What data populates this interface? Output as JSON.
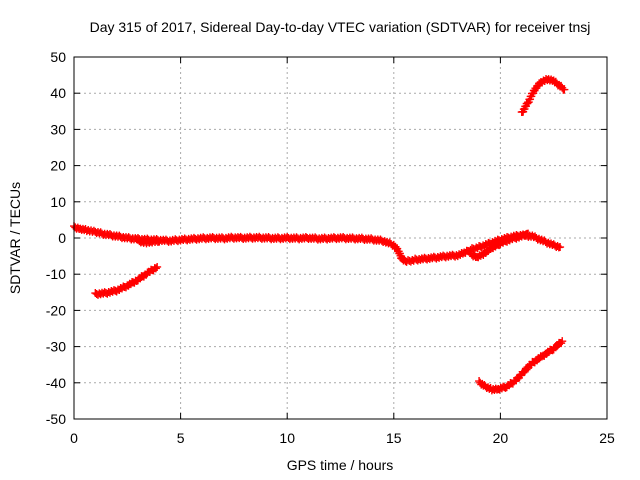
{
  "chart_data": {
    "type": "scatter",
    "title": "Day 315 of 2017, Sidereal Day-to-day VTEC variation (SDTVAR) for receiver tnsj",
    "xlabel": "GPS time / hours",
    "ylabel": "SDTVAR / TECUs",
    "xlim": [
      0,
      25
    ],
    "ylim": [
      -50,
      50
    ],
    "xticks": [
      "0",
      "5",
      "10",
      "15",
      "20",
      "25"
    ],
    "yticks": [
      "-50",
      "-40",
      "-30",
      "-20",
      "-10",
      "0",
      "10",
      "20",
      "30",
      "40",
      "50"
    ],
    "grid": true,
    "marker": "+",
    "color": "#ff0000",
    "series": [
      {
        "name": "main-track",
        "points": [
          [
            0.0,
            3.0
          ],
          [
            0.3,
            2.6
          ],
          [
            0.6,
            2.2
          ],
          [
            1.0,
            1.6
          ],
          [
            1.5,
            1.0
          ],
          [
            2.0,
            0.5
          ],
          [
            2.5,
            0.0
          ],
          [
            3.0,
            -0.3
          ],
          [
            3.5,
            -0.5
          ],
          [
            4.0,
            -0.6
          ],
          [
            4.5,
            -0.8
          ],
          [
            5.0,
            -0.5
          ],
          [
            5.5,
            -0.3
          ],
          [
            6.0,
            -0.1
          ],
          [
            6.5,
            0.0
          ],
          [
            7.0,
            -0.1
          ],
          [
            7.5,
            0.1
          ],
          [
            8.0,
            0.0
          ],
          [
            8.5,
            0.1
          ],
          [
            9.0,
            0.0
          ],
          [
            9.5,
            -0.1
          ],
          [
            10.0,
            0.0
          ],
          [
            10.5,
            -0.1
          ],
          [
            11.0,
            0.0
          ],
          [
            11.5,
            -0.2
          ],
          [
            12.0,
            -0.1
          ],
          [
            12.5,
            0.0
          ],
          [
            13.0,
            -0.1
          ],
          [
            13.5,
            -0.2
          ],
          [
            14.0,
            -0.4
          ],
          [
            14.5,
            -0.8
          ],
          [
            15.0,
            -2.0
          ],
          [
            15.2,
            -3.5
          ],
          [
            15.4,
            -6.0
          ],
          [
            15.6,
            -6.5
          ],
          [
            16.0,
            -6.0
          ],
          [
            16.5,
            -5.7
          ],
          [
            17.0,
            -5.4
          ],
          [
            17.5,
            -5.0
          ],
          [
            18.0,
            -4.8
          ],
          [
            18.3,
            -4.2
          ],
          [
            18.6,
            -3.2
          ],
          [
            19.0,
            -2.5
          ],
          [
            19.5,
            -1.5
          ],
          [
            20.0,
            -0.5
          ],
          [
            20.5,
            0.3
          ],
          [
            21.0,
            0.8
          ],
          [
            21.5,
            0.5
          ],
          [
            22.0,
            -0.8
          ],
          [
            22.5,
            -2.0
          ],
          [
            22.8,
            -2.5
          ]
        ]
      },
      {
        "name": "lower-branch",
        "points": [
          [
            18.6,
            -4.5
          ],
          [
            18.9,
            -5.2
          ],
          [
            19.2,
            -4.4
          ],
          [
            19.6,
            -2.8
          ],
          [
            20.0,
            -1.5
          ],
          [
            20.5,
            -0.3
          ],
          [
            21.0,
            0.5
          ],
          [
            21.3,
            1.2
          ]
        ]
      },
      {
        "name": "early-dip",
        "points": [
          [
            3.0,
            -0.8
          ],
          [
            3.2,
            -1.0
          ],
          [
            3.4,
            -1.2
          ],
          [
            3.6,
            -1.1
          ],
          [
            3.8,
            -0.9
          ],
          [
            4.0,
            -1.0
          ]
        ]
      },
      {
        "name": "early-negative-arc",
        "points": [
          [
            1.0,
            -15.5
          ],
          [
            1.5,
            -15.2
          ],
          [
            2.0,
            -14.5
          ],
          [
            2.5,
            -13.2
          ],
          [
            3.0,
            -11.5
          ],
          [
            3.5,
            -9.5
          ],
          [
            3.9,
            -8.0
          ]
        ]
      },
      {
        "name": "late-negative-arc",
        "points": [
          [
            19.0,
            -39.8
          ],
          [
            19.3,
            -41.0
          ],
          [
            19.6,
            -41.8
          ],
          [
            19.9,
            -41.8
          ],
          [
            20.3,
            -41.0
          ],
          [
            20.7,
            -39.5
          ],
          [
            21.0,
            -37.5
          ],
          [
            21.5,
            -34.5
          ],
          [
            22.0,
            -32.5
          ],
          [
            22.5,
            -30.5
          ],
          [
            22.9,
            -28.5
          ]
        ]
      },
      {
        "name": "late-positive-arc",
        "points": [
          [
            21.0,
            34.5
          ],
          [
            21.3,
            37.5
          ],
          [
            21.6,
            41.0
          ],
          [
            21.9,
            43.0
          ],
          [
            22.2,
            43.8
          ],
          [
            22.5,
            43.3
          ],
          [
            22.8,
            42.0
          ],
          [
            23.0,
            41.0
          ]
        ]
      }
    ]
  }
}
